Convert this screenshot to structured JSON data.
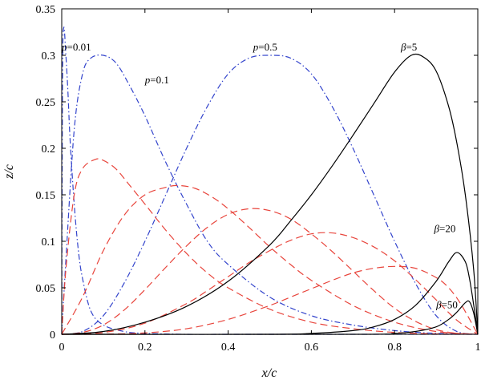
{
  "chart_data": {
    "type": "line",
    "xlabel": "x/c",
    "ylabel": "z/c",
    "xlim": [
      0,
      1
    ],
    "ylim": [
      0,
      0.35
    ],
    "xticks": [
      "0",
      "0.2",
      "0.4",
      "0.6",
      "0.8",
      "1"
    ],
    "yticks": [
      "0",
      "0.05",
      "0.1",
      "0.15",
      "0.2",
      "0.25",
      "0.3",
      "0.35"
    ],
    "grid": false,
    "colors": {
      "blue": "#3344cc",
      "red": "#e8453c",
      "black": "#000000"
    },
    "series": [
      {
        "style": "blue-dashdot",
        "x": [
          0,
          0.002,
          0.005,
          0.01,
          0.015,
          0.02,
          0.03,
          0.04,
          0.05,
          0.07,
          0.1,
          0.15,
          0.2,
          0.3,
          0.4,
          0.5,
          0.7,
          1
        ],
        "y": [
          0,
          0.28,
          0.33,
          0.3,
          0.26,
          0.21,
          0.14,
          0.09,
          0.06,
          0.025,
          0.01,
          0.003,
          0.001,
          0,
          0,
          0,
          0,
          0
        ]
      },
      {
        "style": "blue-dashdot",
        "x": [
          0,
          0.01,
          0.03,
          0.05,
          0.07,
          0.1,
          0.13,
          0.16,
          0.2,
          0.25,
          0.3,
          0.35,
          0.4,
          0.5,
          0.6,
          0.7,
          0.8,
          0.9,
          1
        ],
        "y": [
          0,
          0.08,
          0.22,
          0.28,
          0.297,
          0.3,
          0.292,
          0.27,
          0.235,
          0.185,
          0.14,
          0.1,
          0.075,
          0.04,
          0.02,
          0.01,
          0.004,
          0.001,
          0
        ]
      },
      {
        "style": "blue-dashdot",
        "x": [
          0,
          0.05,
          0.1,
          0.15,
          0.2,
          0.25,
          0.3,
          0.35,
          0.4,
          0.45,
          0.5,
          0.55,
          0.6,
          0.65,
          0.7,
          0.75,
          0.8,
          0.85,
          0.9,
          0.95,
          1
        ],
        "y": [
          0,
          0.003,
          0.02,
          0.055,
          0.1,
          0.15,
          0.2,
          0.245,
          0.28,
          0.297,
          0.3,
          0.297,
          0.28,
          0.245,
          0.2,
          0.15,
          0.1,
          0.055,
          0.02,
          0.003,
          0
        ]
      },
      {
        "style": "red-dashed",
        "x": [
          0,
          0.01,
          0.03,
          0.05,
          0.08,
          0.1,
          0.13,
          0.16,
          0.2,
          0.25,
          0.3,
          0.35,
          0.4,
          0.5,
          0.6,
          0.7,
          0.8,
          0.9,
          1
        ],
        "y": [
          0,
          0.07,
          0.15,
          0.178,
          0.188,
          0.187,
          0.178,
          0.162,
          0.14,
          0.112,
          0.087,
          0.066,
          0.05,
          0.027,
          0.013,
          0.006,
          0.002,
          0.0005,
          0
        ]
      },
      {
        "style": "red-dashed",
        "x": [
          0,
          0.05,
          0.1,
          0.15,
          0.2,
          0.25,
          0.28,
          0.32,
          0.36,
          0.4,
          0.45,
          0.5,
          0.55,
          0.6,
          0.7,
          0.8,
          0.9,
          1
        ],
        "y": [
          0,
          0.04,
          0.09,
          0.128,
          0.15,
          0.158,
          0.16,
          0.157,
          0.148,
          0.135,
          0.115,
          0.094,
          0.075,
          0.058,
          0.031,
          0.013,
          0.003,
          0
        ]
      },
      {
        "style": "red-dashed",
        "x": [
          0,
          0.05,
          0.1,
          0.15,
          0.2,
          0.25,
          0.3,
          0.35,
          0.4,
          0.45,
          0.5,
          0.55,
          0.6,
          0.65,
          0.7,
          0.75,
          0.8,
          0.85,
          0.9,
          0.95,
          1
        ],
        "y": [
          0,
          0.002,
          0.01,
          0.026,
          0.048,
          0.072,
          0.095,
          0.115,
          0.129,
          0.135,
          0.133,
          0.124,
          0.108,
          0.089,
          0.068,
          0.047,
          0.028,
          0.014,
          0.005,
          0.001,
          0
        ]
      },
      {
        "style": "red-dashed",
        "x": [
          0,
          0.1,
          0.2,
          0.3,
          0.35,
          0.4,
          0.45,
          0.5,
          0.55,
          0.6,
          0.65,
          0.7,
          0.75,
          0.8,
          0.85,
          0.9,
          0.95,
          1
        ],
        "y": [
          0,
          0.002,
          0.012,
          0.033,
          0.047,
          0.062,
          0.077,
          0.09,
          0.101,
          0.108,
          0.109,
          0.104,
          0.094,
          0.079,
          0.059,
          0.037,
          0.015,
          0
        ]
      },
      {
        "style": "red-dashed",
        "x": [
          0,
          0.1,
          0.2,
          0.3,
          0.4,
          0.5,
          0.55,
          0.6,
          0.65,
          0.7,
          0.75,
          0.8,
          0.85,
          0.9,
          0.93,
          0.96,
          1
        ],
        "y": [
          0,
          0.0002,
          0.0015,
          0.006,
          0.016,
          0.031,
          0.04,
          0.049,
          0.058,
          0.066,
          0.071,
          0.073,
          0.071,
          0.061,
          0.05,
          0.032,
          0
        ]
      },
      {
        "style": "black-solid",
        "x": [
          0,
          0.1,
          0.2,
          0.3,
          0.4,
          0.5,
          0.55,
          0.6,
          0.65,
          0.7,
          0.75,
          0.8,
          0.84,
          0.87,
          0.9,
          0.93,
          0.95,
          0.97,
          0.99,
          1
        ],
        "y": [
          0,
          0.003,
          0.013,
          0.03,
          0.057,
          0.096,
          0.122,
          0.15,
          0.181,
          0.214,
          0.248,
          0.282,
          0.3,
          0.298,
          0.283,
          0.245,
          0.205,
          0.15,
          0.07,
          0
        ]
      },
      {
        "style": "black-solid",
        "x": [
          0,
          0.5,
          0.6,
          0.7,
          0.75,
          0.8,
          0.85,
          0.9,
          0.93,
          0.95,
          0.97,
          0.98,
          0.99,
          1
        ],
        "y": [
          0,
          0,
          0.001,
          0.004,
          0.008,
          0.016,
          0.031,
          0.057,
          0.078,
          0.088,
          0.078,
          0.06,
          0.032,
          0
        ]
      },
      {
        "style": "black-solid",
        "x": [
          0,
          0.7,
          0.8,
          0.85,
          0.9,
          0.93,
          0.95,
          0.97,
          0.98,
          0.99,
          1
        ],
        "y": [
          0,
          0,
          0.001,
          0.003,
          0.008,
          0.016,
          0.024,
          0.034,
          0.035,
          0.023,
          0
        ]
      }
    ],
    "annotations": [
      {
        "italic": "p",
        "rest": "=0.01",
        "x": 0.0,
        "y": 0.305
      },
      {
        "italic": "p",
        "rest": "=0.1",
        "x": 0.2,
        "y": 0.27
      },
      {
        "italic": "p",
        "rest": "=0.5",
        "x": 0.46,
        "y": 0.305
      },
      {
        "italic": "β",
        "rest": "=5",
        "x": 0.815,
        "y": 0.305
      },
      {
        "italic": "β",
        "rest": "=20",
        "x": 0.895,
        "y": 0.11
      },
      {
        "italic": "β",
        "rest": "=50",
        "x": 0.9,
        "y": 0.028
      }
    ]
  }
}
